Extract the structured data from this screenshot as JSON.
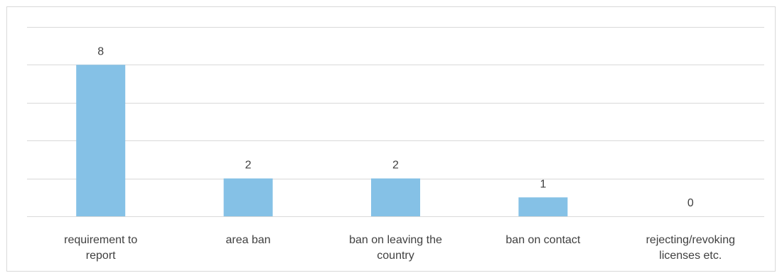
{
  "chart_data": {
    "type": "bar",
    "categories": [
      [
        "requirement to",
        "report"
      ],
      [
        "area ban"
      ],
      [
        "ban on leaving the",
        "country"
      ],
      [
        "ban on contact"
      ],
      [
        "rejecting/revoking",
        "licenses etc."
      ]
    ],
    "values": [
      8,
      2,
      2,
      1,
      0
    ],
    "data_labels": [
      "8",
      "2",
      "2",
      "1",
      "0"
    ],
    "ylim": [
      0,
      10
    ],
    "y_major_unit": 2,
    "grid": true,
    "legend": "none",
    "title": "",
    "xlabel": "",
    "ylabel": ""
  },
  "colors": {
    "bar": "#85c1e6",
    "grid": "#d9d9d9",
    "text": "#404040",
    "border": "#d9d9d9"
  }
}
